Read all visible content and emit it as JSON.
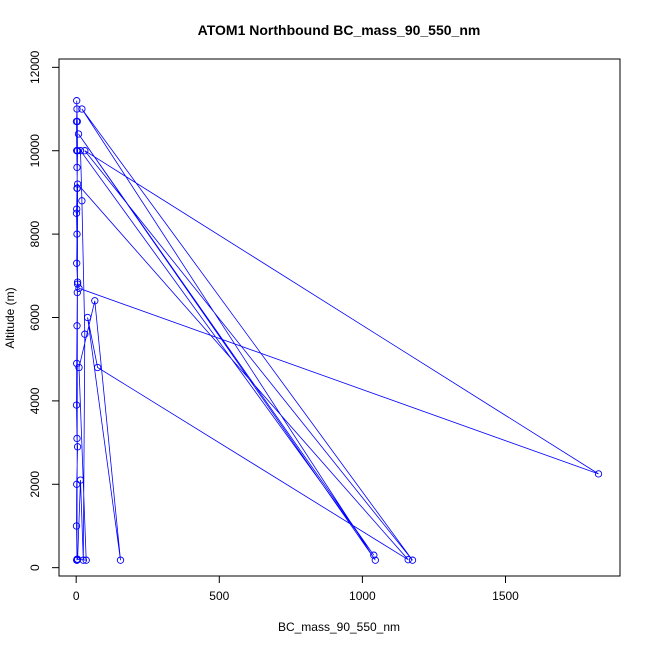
{
  "chart_data": {
    "type": "line",
    "title": "ATOM1 Northbound BC_mass_90_550_nm",
    "xlabel": "BC_mass_90_550_nm",
    "ylabel": "Altitude (m)",
    "xlim": [
      -60,
      1900
    ],
    "ylim": [
      -200,
      12200
    ],
    "x_ticks": [
      0,
      500,
      1000,
      1500
    ],
    "y_ticks": [
      0,
      2000,
      4000,
      6000,
      8000,
      10000,
      12000
    ],
    "grid": false,
    "markers": "open-circle",
    "color": "#0000ff",
    "series": [
      {
        "points": [
          [
            2,
            180
          ],
          [
            3,
            200
          ],
          [
            1,
            1000
          ],
          [
            2,
            2000
          ],
          [
            5,
            2900
          ],
          [
            3,
            3100
          ],
          [
            1,
            3900
          ],
          [
            2,
            4900
          ],
          [
            3,
            5800
          ],
          [
            4,
            6600
          ],
          [
            5,
            6800
          ],
          [
            2,
            7300
          ],
          [
            3,
            8000
          ],
          [
            2,
            8600
          ],
          [
            4,
            9100
          ],
          [
            3,
            9600
          ],
          [
            2,
            10000
          ],
          [
            1,
            10700
          ],
          [
            3,
            11000
          ],
          [
            2,
            11200
          ],
          [
            4,
            10700
          ],
          [
            5,
            10000
          ],
          [
            3,
            9100
          ],
          [
            1,
            8500
          ],
          [
            5,
            6850
          ],
          [
            10,
            6700
          ],
          [
            1825,
            2250
          ],
          [
            30,
            10000
          ],
          [
            1175,
            180
          ],
          [
            20,
            11000
          ],
          [
            1045,
            180
          ],
          [
            8,
            10400
          ],
          [
            1040,
            300
          ],
          [
            15,
            10000
          ],
          [
            20,
            8800
          ],
          [
            30,
            5600
          ],
          [
            25,
            180
          ],
          [
            15,
            2100
          ],
          [
            5,
            200
          ],
          [
            35,
            180
          ],
          [
            10,
            4800
          ],
          [
            65,
            6400
          ],
          [
            155,
            180
          ],
          [
            40,
            6000
          ],
          [
            75,
            4800
          ],
          [
            1160,
            190
          ],
          [
            5,
            9200
          ],
          [
            3,
            180
          ]
        ]
      }
    ]
  }
}
